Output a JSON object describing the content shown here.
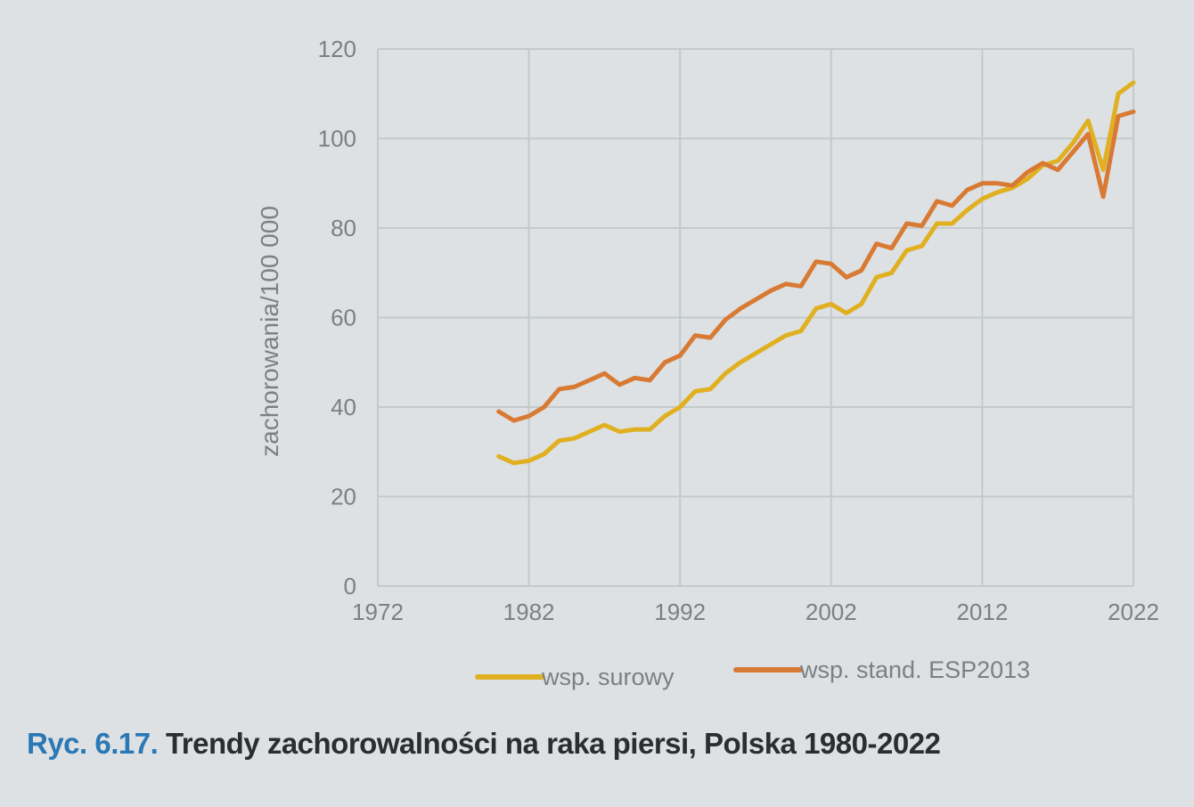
{
  "caption": {
    "label": "Ryc. 6.17.",
    "text": " Trendy zachorowalności na raka piersi, Polska 1980-2022"
  },
  "chart_data": {
    "type": "line",
    "title": "",
    "xlabel": "",
    "ylabel": "zachorowania/100 000",
    "xlim": [
      1972,
      2022
    ],
    "ylim": [
      0,
      120
    ],
    "xticks": [
      1972,
      1982,
      1992,
      2002,
      2012,
      2022
    ],
    "yticks": [
      0,
      20,
      40,
      60,
      80,
      100,
      120
    ],
    "grid": true,
    "legend_position": "bottom",
    "x": [
      1980,
      1981,
      1982,
      1983,
      1984,
      1985,
      1986,
      1987,
      1988,
      1989,
      1990,
      1991,
      1992,
      1993,
      1994,
      1995,
      1996,
      1997,
      1998,
      1999,
      2000,
      2001,
      2002,
      2003,
      2004,
      2005,
      2006,
      2007,
      2008,
      2009,
      2010,
      2011,
      2012,
      2013,
      2014,
      2015,
      2016,
      2017,
      2018,
      2019,
      2020,
      2021,
      2022
    ],
    "series": [
      {
        "name": "wsp. surowy",
        "color": "#e0b020",
        "values": [
          29,
          27.5,
          28,
          29.5,
          32.5,
          33,
          34.5,
          36,
          34.5,
          35,
          35,
          38,
          40,
          43.5,
          44,
          47.5,
          50,
          52,
          54,
          56,
          57,
          62,
          63,
          61,
          63,
          69,
          70,
          75,
          76,
          81,
          81,
          84,
          86.5,
          88,
          89,
          91,
          94,
          95,
          99,
          104,
          93,
          110,
          112.5
        ]
      },
      {
        "name": "wsp. stand. ESP2013",
        "color": "#d97a34",
        "values": [
          39,
          37,
          38,
          40,
          44,
          44.5,
          46,
          47.5,
          45,
          46.5,
          46,
          50,
          51.5,
          56,
          55.5,
          59.5,
          62,
          64,
          66,
          67.5,
          67,
          72.5,
          72,
          69,
          70.5,
          76.5,
          75.5,
          81,
          80.5,
          86,
          85,
          88.5,
          90,
          90,
          89.5,
          92.5,
          94.5,
          93,
          97,
          101,
          87,
          105,
          106
        ]
      }
    ]
  }
}
